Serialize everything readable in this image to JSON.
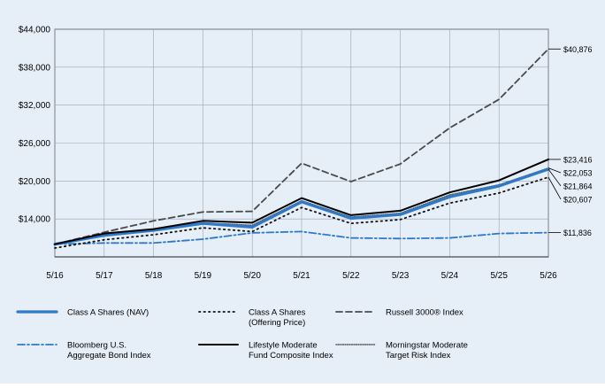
{
  "chart_data": {
    "type": "line",
    "title": "",
    "xlabel": "",
    "ylabel": "",
    "x": [
      "5/16",
      "5/17",
      "5/18",
      "5/19",
      "5/20",
      "5/21",
      "5/22",
      "5/23",
      "5/24",
      "5/25",
      "5/26"
    ],
    "ylim": [
      8000,
      44000
    ],
    "yticks": [
      14000,
      20000,
      26000,
      32000,
      38000,
      44000
    ],
    "ytick_labels": [
      "$14,000",
      "$20,000",
      "$26,000",
      "$32,000",
      "$38,000",
      "$44,000"
    ],
    "grid": true,
    "legend_position": "bottom",
    "series": [
      {
        "name": "Class A Shares (NAV)",
        "style": "solid-thick",
        "color": "#2f7ac8",
        "values": [
          10000,
          11400,
          12200,
          13300,
          12700,
          16700,
          14100,
          14700,
          17500,
          19200,
          21864
        ],
        "end_label": "$21,864"
      },
      {
        "name": "Class A Shares (Offering Price)",
        "style": "dotted",
        "color": "#111111",
        "values": [
          9400,
          10700,
          11500,
          12600,
          12000,
          15800,
          13300,
          13900,
          16500,
          18100,
          20607
        ],
        "end_label": "$20,607"
      },
      {
        "name": "Russell 3000® Index",
        "style": "dashed",
        "color": "#4a4a4a",
        "values": [
          10000,
          11900,
          13700,
          15100,
          15200,
          22800,
          19900,
          22700,
          28400,
          32900,
          40876
        ],
        "end_label": "$40,876"
      },
      {
        "name": "Bloomberg U.S. Aggregate Bond Index",
        "style": "dashdot",
        "color": "#2f7ac8",
        "values": [
          10000,
          10200,
          10200,
          10800,
          11800,
          12000,
          11000,
          10900,
          11000,
          11700,
          11836
        ],
        "end_label": "$11,836"
      },
      {
        "name": "Lifestyle Moderate Fund Composite Index",
        "style": "solid",
        "color": "#000000",
        "values": [
          10000,
          11700,
          12400,
          13700,
          13400,
          17300,
          14600,
          15300,
          18200,
          20100,
          23416
        ],
        "end_label": "$23,416"
      },
      {
        "name": "Morningstar Moderate Target Risk Index",
        "style": "dotted-fine",
        "color": "#555555",
        "values": [
          10000,
          11500,
          12300,
          13400,
          13000,
          16900,
          14300,
          14900,
          17800,
          19400,
          22053
        ],
        "end_label": "$22,053"
      }
    ]
  },
  "legend": {
    "items": [
      {
        "label_lines": [
          "Class A Shares (NAV)"
        ]
      },
      {
        "label_lines": [
          "Class A Shares",
          "(Offering Price)"
        ]
      },
      {
        "label_lines": [
          "Russell 3000® Index"
        ]
      },
      {
        "label_lines": [
          "Bloomberg U.S.",
          "Aggregate Bond Index"
        ]
      },
      {
        "label_lines": [
          "Lifestyle Moderate",
          "Fund Composite Index"
        ]
      },
      {
        "label_lines": [
          "Morningstar Moderate",
          "Target Risk Index"
        ]
      }
    ]
  }
}
